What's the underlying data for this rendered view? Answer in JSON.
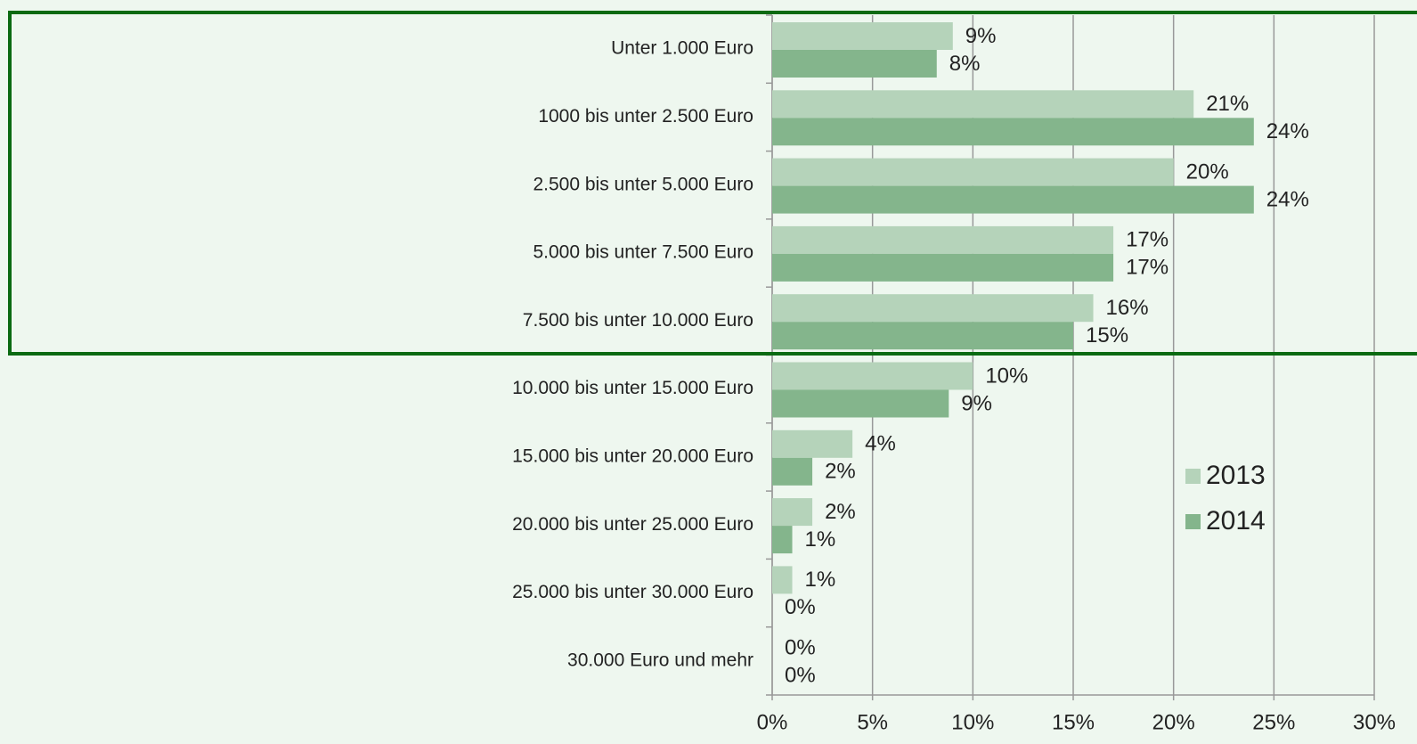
{
  "chart_data": {
    "type": "bar",
    "orientation": "horizontal",
    "categories": [
      "Unter 1.000 Euro",
      "1000 bis unter 2.500 Euro",
      "2.500 bis unter 5.000 Euro",
      "5.000 bis unter 7.500 Euro",
      "7.500 bis unter 10.000 Euro",
      "10.000 bis unter 15.000 Euro",
      "15.000 bis unter 20.000 Euro",
      "20.000 bis unter 25.000 Euro",
      "25.000 bis unter 30.000 Euro",
      "30.000 Euro und mehr"
    ],
    "series": [
      {
        "name": "2013",
        "color": "#b5d3ba",
        "values": [
          9,
          21,
          20,
          17,
          16,
          10,
          4,
          2,
          1,
          0
        ],
        "value_labels": [
          "9%",
          "21%",
          "20%",
          "17%",
          "16%",
          "10%",
          "4%",
          "2%",
          "1%",
          "0%"
        ]
      },
      {
        "name": "2014",
        "color": "#84b58c",
        "values": [
          8.2,
          24,
          24,
          17,
          15,
          8.8,
          2,
          1,
          0,
          0
        ],
        "value_labels": [
          "8%",
          "24%",
          "24%",
          "17%",
          "15%",
          "9%",
          "2%",
          "1%",
          "0%",
          "0%"
        ]
      }
    ],
    "xlim": [
      0,
      30
    ],
    "xticks": [
      {
        "value": 0,
        "label": "0%"
      },
      {
        "value": 5,
        "label": "5%"
      },
      {
        "value": 10,
        "label": "10%"
      },
      {
        "value": 15,
        "label": "15%"
      },
      {
        "value": 20,
        "label": "20%"
      },
      {
        "value": 25,
        "label": "25%"
      },
      {
        "value": 30,
        "label": "30%"
      }
    ],
    "grid": true
  }
}
